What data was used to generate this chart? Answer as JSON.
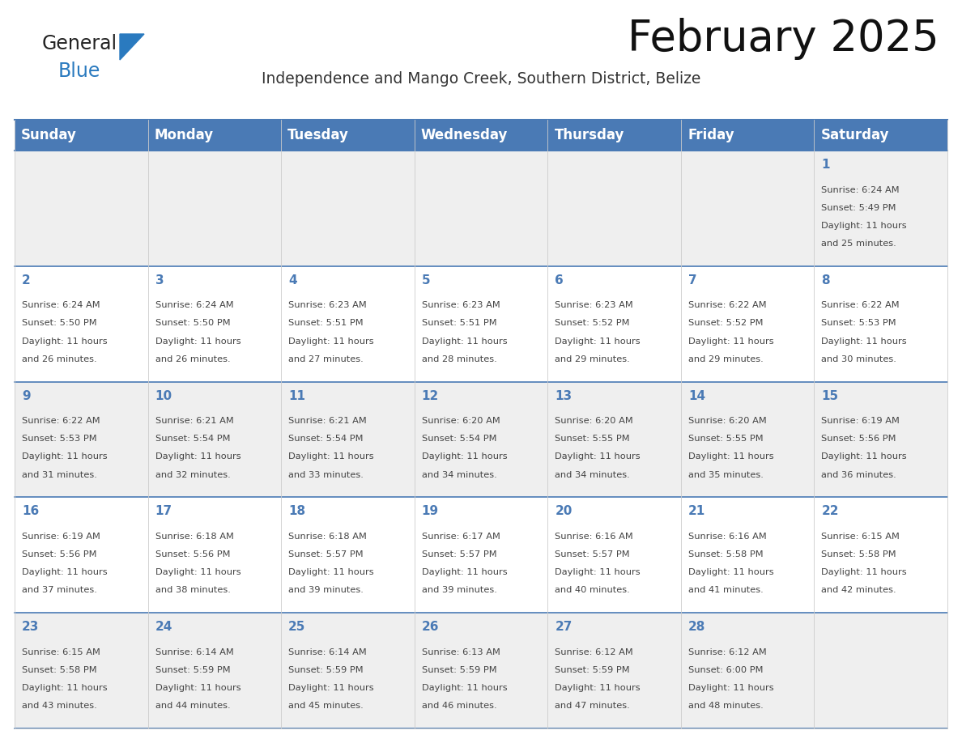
{
  "title": "February 2025",
  "subtitle": "Independence and Mango Creek, Southern District, Belize",
  "header_color": "#4a7ab5",
  "header_text_color": "#ffffff",
  "day_names": [
    "Sunday",
    "Monday",
    "Tuesday",
    "Wednesday",
    "Thursday",
    "Friday",
    "Saturday"
  ],
  "background_color": "#ffffff",
  "cell_bg_light": "#efefef",
  "cell_bg_white": "#ffffff",
  "row_line_color": "#4a7ab5",
  "col_line_color": "#cccccc",
  "title_fontsize": 38,
  "subtitle_fontsize": 13.5,
  "header_fontsize": 12,
  "cell_text_fontsize": 8.2,
  "day_num_fontsize": 11,
  "day_num_color": "#4a7ab5",
  "text_color": "#444444",
  "logo_color_general": "#222222",
  "logo_color_blue": "#2a7abf",
  "calendar_data": [
    [
      null,
      null,
      null,
      null,
      null,
      null,
      {
        "day": 1,
        "sunrise": "6:24 AM",
        "sunset": "5:49 PM",
        "daylight_line1": "Daylight: 11 hours",
        "daylight_line2": "and 25 minutes."
      }
    ],
    [
      {
        "day": 2,
        "sunrise": "6:24 AM",
        "sunset": "5:50 PM",
        "daylight_line1": "Daylight: 11 hours",
        "daylight_line2": "and 26 minutes."
      },
      {
        "day": 3,
        "sunrise": "6:24 AM",
        "sunset": "5:50 PM",
        "daylight_line1": "Daylight: 11 hours",
        "daylight_line2": "and 26 minutes."
      },
      {
        "day": 4,
        "sunrise": "6:23 AM",
        "sunset": "5:51 PM",
        "daylight_line1": "Daylight: 11 hours",
        "daylight_line2": "and 27 minutes."
      },
      {
        "day": 5,
        "sunrise": "6:23 AM",
        "sunset": "5:51 PM",
        "daylight_line1": "Daylight: 11 hours",
        "daylight_line2": "and 28 minutes."
      },
      {
        "day": 6,
        "sunrise": "6:23 AM",
        "sunset": "5:52 PM",
        "daylight_line1": "Daylight: 11 hours",
        "daylight_line2": "and 29 minutes."
      },
      {
        "day": 7,
        "sunrise": "6:22 AM",
        "sunset": "5:52 PM",
        "daylight_line1": "Daylight: 11 hours",
        "daylight_line2": "and 29 minutes."
      },
      {
        "day": 8,
        "sunrise": "6:22 AM",
        "sunset": "5:53 PM",
        "daylight_line1": "Daylight: 11 hours",
        "daylight_line2": "and 30 minutes."
      }
    ],
    [
      {
        "day": 9,
        "sunrise": "6:22 AM",
        "sunset": "5:53 PM",
        "daylight_line1": "Daylight: 11 hours",
        "daylight_line2": "and 31 minutes."
      },
      {
        "day": 10,
        "sunrise": "6:21 AM",
        "sunset": "5:54 PM",
        "daylight_line1": "Daylight: 11 hours",
        "daylight_line2": "and 32 minutes."
      },
      {
        "day": 11,
        "sunrise": "6:21 AM",
        "sunset": "5:54 PM",
        "daylight_line1": "Daylight: 11 hours",
        "daylight_line2": "and 33 minutes."
      },
      {
        "day": 12,
        "sunrise": "6:20 AM",
        "sunset": "5:54 PM",
        "daylight_line1": "Daylight: 11 hours",
        "daylight_line2": "and 34 minutes."
      },
      {
        "day": 13,
        "sunrise": "6:20 AM",
        "sunset": "5:55 PM",
        "daylight_line1": "Daylight: 11 hours",
        "daylight_line2": "and 34 minutes."
      },
      {
        "day": 14,
        "sunrise": "6:20 AM",
        "sunset": "5:55 PM",
        "daylight_line1": "Daylight: 11 hours",
        "daylight_line2": "and 35 minutes."
      },
      {
        "day": 15,
        "sunrise": "6:19 AM",
        "sunset": "5:56 PM",
        "daylight_line1": "Daylight: 11 hours",
        "daylight_line2": "and 36 minutes."
      }
    ],
    [
      {
        "day": 16,
        "sunrise": "6:19 AM",
        "sunset": "5:56 PM",
        "daylight_line1": "Daylight: 11 hours",
        "daylight_line2": "and 37 minutes."
      },
      {
        "day": 17,
        "sunrise": "6:18 AM",
        "sunset": "5:56 PM",
        "daylight_line1": "Daylight: 11 hours",
        "daylight_line2": "and 38 minutes."
      },
      {
        "day": 18,
        "sunrise": "6:18 AM",
        "sunset": "5:57 PM",
        "daylight_line1": "Daylight: 11 hours",
        "daylight_line2": "and 39 minutes."
      },
      {
        "day": 19,
        "sunrise": "6:17 AM",
        "sunset": "5:57 PM",
        "daylight_line1": "Daylight: 11 hours",
        "daylight_line2": "and 39 minutes."
      },
      {
        "day": 20,
        "sunrise": "6:16 AM",
        "sunset": "5:57 PM",
        "daylight_line1": "Daylight: 11 hours",
        "daylight_line2": "and 40 minutes."
      },
      {
        "day": 21,
        "sunrise": "6:16 AM",
        "sunset": "5:58 PM",
        "daylight_line1": "Daylight: 11 hours",
        "daylight_line2": "and 41 minutes."
      },
      {
        "day": 22,
        "sunrise": "6:15 AM",
        "sunset": "5:58 PM",
        "daylight_line1": "Daylight: 11 hours",
        "daylight_line2": "and 42 minutes."
      }
    ],
    [
      {
        "day": 23,
        "sunrise": "6:15 AM",
        "sunset": "5:58 PM",
        "daylight_line1": "Daylight: 11 hours",
        "daylight_line2": "and 43 minutes."
      },
      {
        "day": 24,
        "sunrise": "6:14 AM",
        "sunset": "5:59 PM",
        "daylight_line1": "Daylight: 11 hours",
        "daylight_line2": "and 44 minutes."
      },
      {
        "day": 25,
        "sunrise": "6:14 AM",
        "sunset": "5:59 PM",
        "daylight_line1": "Daylight: 11 hours",
        "daylight_line2": "and 45 minutes."
      },
      {
        "day": 26,
        "sunrise": "6:13 AM",
        "sunset": "5:59 PM",
        "daylight_line1": "Daylight: 11 hours",
        "daylight_line2": "and 46 minutes."
      },
      {
        "day": 27,
        "sunrise": "6:12 AM",
        "sunset": "5:59 PM",
        "daylight_line1": "Daylight: 11 hours",
        "daylight_line2": "and 47 minutes."
      },
      {
        "day": 28,
        "sunrise": "6:12 AM",
        "sunset": "6:00 PM",
        "daylight_line1": "Daylight: 11 hours",
        "daylight_line2": "and 48 minutes."
      },
      null
    ]
  ]
}
